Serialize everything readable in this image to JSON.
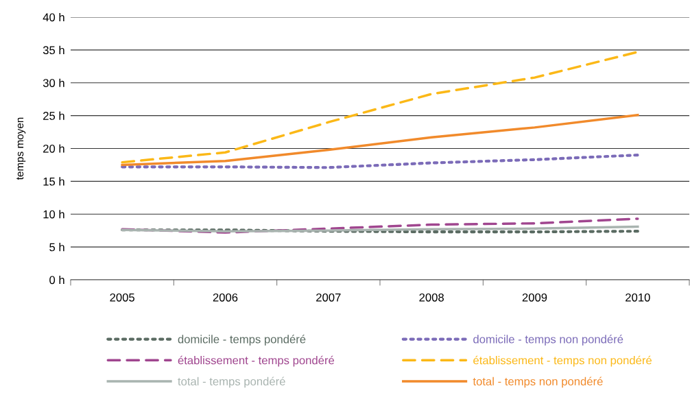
{
  "chart_data": {
    "type": "line",
    "ylabel": "temps moyen",
    "categories": [
      "2005",
      "2006",
      "2007",
      "2008",
      "2009",
      "2010"
    ],
    "ylim": [
      0,
      40
    ],
    "yticks": [
      {
        "value": 0,
        "label": "0 h"
      },
      {
        "value": 5,
        "label": "5 h"
      },
      {
        "value": 10,
        "label": "10 h"
      },
      {
        "value": 15,
        "label": "15 h"
      },
      {
        "value": 20,
        "label": "20 h"
      },
      {
        "value": 25,
        "label": "25 h"
      },
      {
        "value": 30,
        "label": "30 h"
      },
      {
        "value": 35,
        "label": "35 h"
      },
      {
        "value": 40,
        "label": "40 h"
      }
    ],
    "grid": "y",
    "legend": "bottom",
    "marker": "none",
    "series": [
      {
        "name": "domicile - temps pondéré",
        "color": "#5a6b62",
        "line_style": "dotted",
        "values": [
          7.6,
          7.6,
          7.4,
          7.3,
          7.3,
          7.4
        ]
      },
      {
        "name": "établissement - temps pondéré",
        "color": "#a0468f",
        "line_style": "dashed",
        "values": [
          7.7,
          7.2,
          7.8,
          8.4,
          8.6,
          9.3
        ]
      },
      {
        "name": "total - temps pondéré",
        "color": "#a9b4b0",
        "line_style": "solid",
        "values": [
          7.6,
          7.4,
          7.5,
          7.7,
          7.8,
          8.1
        ]
      },
      {
        "name": "domicile - temps non pondéré",
        "color": "#7b6bb8",
        "line_style": "dotted",
        "values": [
          17.2,
          17.2,
          17.1,
          17.8,
          18.3,
          19.0
        ]
      },
      {
        "name": "établissement - temps non pondéré",
        "color": "#fbb817",
        "line_style": "dashed",
        "values": [
          17.9,
          19.4,
          24.0,
          28.3,
          30.8,
          34.7
        ]
      },
      {
        "name": "total - temps non pondéré",
        "color": "#f18a2b",
        "line_style": "solid",
        "values": [
          17.5,
          18.1,
          19.8,
          21.7,
          23.2,
          25.1
        ]
      }
    ]
  }
}
